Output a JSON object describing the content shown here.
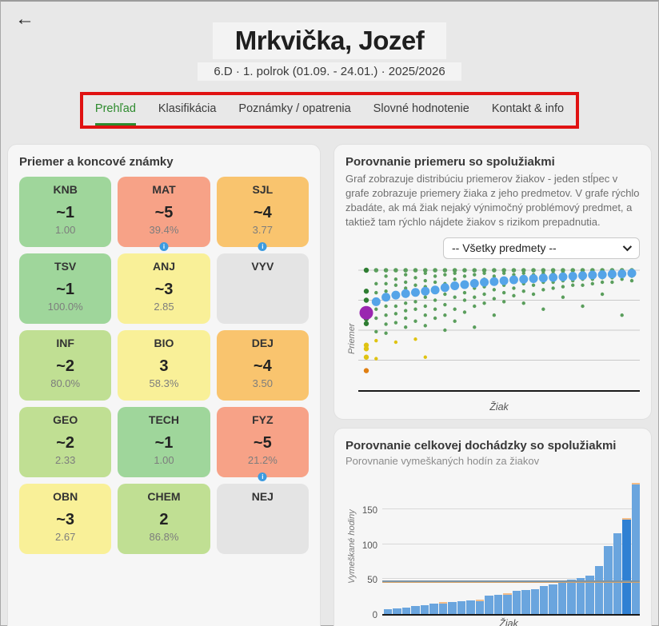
{
  "header": {
    "back_icon": "←",
    "title": "Mrkvička, Jozef",
    "subtitle": "6.D · 1. polrok (01.09. - 24.01.) · 2025/2026"
  },
  "tabs": {
    "annotation_color": "#e01212",
    "items": [
      {
        "label": "Prehľad",
        "active": true
      },
      {
        "label": "Klasifikácia",
        "active": false
      },
      {
        "label": "Poznámky / opatrenia",
        "active": false
      },
      {
        "label": "Slovné hodnotenie",
        "active": false
      },
      {
        "label": "Kontakt & info",
        "active": false
      }
    ]
  },
  "grades_panel": {
    "title": "Priemer a koncové známky",
    "colors": {
      "green": "#9fd69b",
      "lightgreen": "#c0df93",
      "yellow": "#f9f098",
      "orange": "#f9c46e",
      "red": "#f7a287",
      "gray": "#e4e4e4"
    },
    "subjects": [
      {
        "code": "KNB",
        "grade": "~1",
        "detail": "1.00",
        "color": "green",
        "info_dot": false
      },
      {
        "code": "MAT",
        "grade": "~5",
        "detail": "39.4%",
        "color": "red",
        "info_dot": true
      },
      {
        "code": "SJL",
        "grade": "~4",
        "detail": "3.77",
        "color": "orange",
        "info_dot": true
      },
      {
        "code": "TSV",
        "grade": "~1",
        "detail": "100.0%",
        "color": "green",
        "info_dot": false
      },
      {
        "code": "ANJ",
        "grade": "~3",
        "detail": "2.85",
        "color": "yellow",
        "info_dot": false
      },
      {
        "code": "VYV",
        "grade": "",
        "detail": "",
        "color": "gray",
        "info_dot": false
      },
      {
        "code": "INF",
        "grade": "~2",
        "detail": "80.0%",
        "color": "lightgreen",
        "info_dot": false
      },
      {
        "code": "BIO",
        "grade": "3",
        "detail": "58.3%",
        "color": "yellow",
        "info_dot": false
      },
      {
        "code": "DEJ",
        "grade": "~4",
        "detail": "3.50",
        "color": "orange",
        "info_dot": false
      },
      {
        "code": "GEO",
        "grade": "~2",
        "detail": "2.33",
        "color": "lightgreen",
        "info_dot": false
      },
      {
        "code": "TECH",
        "grade": "~1",
        "detail": "1.00",
        "color": "green",
        "info_dot": false
      },
      {
        "code": "FYZ",
        "grade": "~5",
        "detail": "21.2%",
        "color": "red",
        "info_dot": true
      },
      {
        "code": "OBN",
        "grade": "~3",
        "detail": "2.67",
        "color": "yellow",
        "info_dot": false
      },
      {
        "code": "CHEM",
        "grade": "2",
        "detail": "86.8%",
        "color": "lightgreen",
        "info_dot": false
      },
      {
        "code": "NEJ",
        "grade": "",
        "detail": "",
        "color": "gray",
        "info_dot": false
      }
    ]
  },
  "average_chart_panel": {
    "title": "Porovnanie priemeru so spolužiakmi",
    "description": "Graf zobrazuje distribúciu priemerov žiakov - jeden stĺpec v grafe zobrazuje priemery žiaka z jeho predmetov. V grafe rýchlo zbadáte, ak má žiak nejaký výnimočný problémový predmet, a taktiež tam rýchlo nájdete žiakov s rizikom prepadnutia.",
    "select_value": "-- Všetky predmety --"
  },
  "attendance_panel": {
    "title": "Porovnanie celkovej dochádzky so spolužiakmi",
    "subtitle": "Porovnanie vymeškaných hodín za žiakov"
  },
  "chart_data": [
    {
      "type": "scatter",
      "title": "Porovnanie priemeru so spolužiakmi",
      "xlabel": "Žiak",
      "ylabel": "Priemer",
      "y_axis_grades": [
        1,
        2,
        3,
        4,
        5
      ],
      "grid": true,
      "note": "each column = one student; small dots = subject averages, big dot = overall average; purple = this student",
      "colors": {
        "dot_green": "#5a9e5c",
        "dot_dark_green": "#2e7d32",
        "dot_yellow": "#dfc312",
        "dot_orange": "#e07f12",
        "avg_blue": "#55a4e8",
        "highlight_purple": "#9a27b0",
        "gridline": "#c9c9c9",
        "axis": "#1a1a1a"
      },
      "columns": [
        {
          "highlight": true,
          "avg": 2.42,
          "dots": [
            1.0,
            1.7,
            2.0,
            2.62,
            2.78,
            3.5,
            3.62,
            3.9,
            4.35
          ]
        },
        {
          "highlight": false,
          "avg": 2.05,
          "dots": [
            1.0,
            1.45,
            1.75,
            2.05,
            2.3,
            2.6,
            3.05,
            3.35,
            3.95
          ]
        },
        {
          "highlight": false,
          "avg": 1.9,
          "dots": [
            1.0,
            1.2,
            1.45,
            1.7,
            2.2,
            2.5,
            2.8,
            3.1
          ]
        },
        {
          "highlight": false,
          "avg": 1.83,
          "dots": [
            1.0,
            1.3,
            1.5,
            1.9,
            2.2,
            2.45,
            2.75,
            3.4
          ]
        },
        {
          "highlight": false,
          "avg": 1.78,
          "dots": [
            1.0,
            1.15,
            1.4,
            1.6,
            2.1,
            2.35,
            2.6,
            2.9
          ]
        },
        {
          "highlight": false,
          "avg": 1.74,
          "dots": [
            1.0,
            1.25,
            1.5,
            1.8,
            2.05,
            2.3,
            2.7,
            3.3
          ]
        },
        {
          "highlight": false,
          "avg": 1.7,
          "dots": [
            1.0,
            1.1,
            1.35,
            1.55,
            1.9,
            2.2,
            2.5,
            2.85,
            3.9
          ]
        },
        {
          "highlight": false,
          "avg": 1.66,
          "dots": [
            1.0,
            1.2,
            1.4,
            1.7,
            2.0,
            2.3,
            2.6
          ]
        },
        {
          "highlight": false,
          "avg": 1.58,
          "dots": [
            1.0,
            1.15,
            1.45,
            1.8,
            2.15,
            2.5,
            3.0
          ]
        },
        {
          "highlight": false,
          "avg": 1.52,
          "dots": [
            1.0,
            1.1,
            1.3,
            1.6,
            1.9,
            2.3,
            2.7
          ]
        },
        {
          "highlight": false,
          "avg": 1.48,
          "dots": [
            1.0,
            1.2,
            1.5,
            1.75,
            2.0,
            2.4
          ]
        },
        {
          "highlight": false,
          "avg": 1.44,
          "dots": [
            1.0,
            1.15,
            1.35,
            1.6,
            1.9,
            2.2,
            2.9
          ]
        },
        {
          "highlight": false,
          "avg": 1.4,
          "dots": [
            1.0,
            1.1,
            1.3,
            1.55,
            1.8,
            2.1
          ]
        },
        {
          "highlight": false,
          "avg": 1.38,
          "dots": [
            1.0,
            1.2,
            1.4,
            1.65,
            1.95,
            2.5
          ]
        },
        {
          "highlight": false,
          "avg": 1.35,
          "dots": [
            1.0,
            1.1,
            1.3,
            1.5,
            1.75,
            2.05
          ]
        },
        {
          "highlight": false,
          "avg": 1.32,
          "dots": [
            1.0,
            1.15,
            1.35,
            1.6,
            1.85
          ]
        },
        {
          "highlight": false,
          "avg": 1.3,
          "dots": [
            1.0,
            1.1,
            1.25,
            1.45,
            1.7,
            2.1
          ]
        },
        {
          "highlight": false,
          "avg": 1.28,
          "dots": [
            1.0,
            1.15,
            1.3,
            1.5,
            1.8
          ]
        },
        {
          "highlight": false,
          "avg": 1.26,
          "dots": [
            1.0,
            1.1,
            1.25,
            1.4,
            1.65,
            2.3
          ]
        },
        {
          "highlight": false,
          "avg": 1.24,
          "dots": [
            1.0,
            1.1,
            1.2,
            1.4,
            1.6
          ]
        },
        {
          "highlight": false,
          "avg": 1.22,
          "dots": [
            1.0,
            1.05,
            1.2,
            1.35,
            1.55,
            1.9
          ]
        },
        {
          "highlight": false,
          "avg": 1.2,
          "dots": [
            1.0,
            1.1,
            1.2,
            1.35,
            1.5
          ]
        },
        {
          "highlight": false,
          "avg": 1.18,
          "dots": [
            1.0,
            1.05,
            1.15,
            1.3,
            1.5,
            2.2
          ]
        },
        {
          "highlight": false,
          "avg": 1.16,
          "dots": [
            1.0,
            1.1,
            1.2,
            1.3,
            1.45
          ]
        },
        {
          "highlight": false,
          "avg": 1.15,
          "dots": [
            1.0,
            1.05,
            1.15,
            1.25,
            1.4,
            1.8
          ]
        },
        {
          "highlight": false,
          "avg": 1.13,
          "dots": [
            1.0,
            1.05,
            1.1,
            1.25,
            1.4
          ]
        },
        {
          "highlight": false,
          "avg": 1.12,
          "dots": [
            1.0,
            1.1,
            1.15,
            1.3,
            2.5
          ]
        },
        {
          "highlight": false,
          "avg": 1.1,
          "dots": [
            1.0,
            1.05,
            1.1,
            1.2,
            1.35
          ]
        }
      ]
    },
    {
      "type": "bar",
      "title": "Porovnanie celkovej dochádzky so spolužiakmi",
      "xlabel": "Žiak",
      "ylabel": "Vymeškané hodiny",
      "yticks": [
        0,
        50,
        100,
        150
      ],
      "ylim": [
        0,
        195
      ],
      "grid": true,
      "values": [
        7,
        8,
        9,
        11,
        13,
        15,
        17,
        17,
        18,
        19,
        21,
        26,
        28,
        30,
        33,
        34,
        36,
        40,
        42,
        46,
        49,
        52,
        55,
        69,
        98,
        116,
        138,
        188
      ],
      "highlight_index": 26,
      "orange_tip_indices": [
        6,
        10,
        13,
        26,
        27
      ],
      "avg_line": 46,
      "avg_line2": 45,
      "colors": {
        "bar": "#6aa5de",
        "bar_highlight": "#2f80d3",
        "tip": "#f4bd88",
        "avg_line": "#7d96a8",
        "avg_line2": "#d5a268"
      }
    }
  ]
}
